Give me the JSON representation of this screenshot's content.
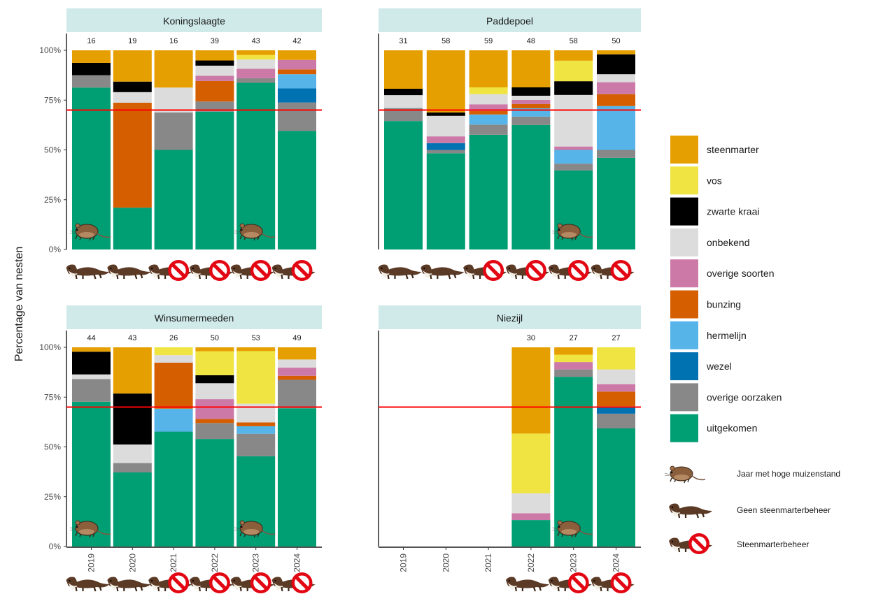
{
  "chart_data": {
    "type": "bar",
    "stacked": true,
    "ylabel": "Percentage van nesten",
    "y_ticks": [
      "0%",
      "25%",
      "50%",
      "75%",
      "100%"
    ],
    "categories": [
      "2019",
      "2020",
      "2021",
      "2022",
      "2023",
      "2024"
    ],
    "reference_line": 70,
    "reference_line_color": "#ff0000",
    "stack_order": [
      "uitgekomen",
      "overige oorzaken",
      "wezel",
      "hermelijn",
      "bunzing",
      "overige soorten",
      "onbekend",
      "zwarte kraai",
      "vos",
      "steenmarter"
    ],
    "legend": [
      {
        "name": "steenmarter",
        "color": "#E69F00"
      },
      {
        "name": "vos",
        "color": "#F0E442"
      },
      {
        "name": "zwarte kraai",
        "color": "#000000"
      },
      {
        "name": "onbekend",
        "color": "#DCDCDC"
      },
      {
        "name": "overige soorten",
        "color": "#CC79A7"
      },
      {
        "name": "bunzing",
        "color": "#D55E00"
      },
      {
        "name": "hermelijn",
        "color": "#56B4E9"
      },
      {
        "name": "wezel",
        "color": "#0072B2"
      },
      {
        "name": "overige oorzaken",
        "color": "#888888"
      },
      {
        "name": "uitgekomen",
        "color": "#009E73"
      }
    ],
    "symbol_legend": [
      {
        "icon": "mouse-icon",
        "label": "Jaar met hoge muizenstand"
      },
      {
        "icon": "marten-icon",
        "label": "Geen steenmarterbeheer"
      },
      {
        "icon": "marten-ban-icon",
        "label": "Steenmarterbeheer"
      }
    ],
    "panels": [
      {
        "name": "Koningslaagte",
        "n": [
          "16",
          "19",
          "16",
          "39",
          "43",
          "42"
        ],
        "stacks": [
          [
            {
              "cat": "uitgekomen",
              "value": 81.3
            },
            {
              "cat": "overige oorzaken",
              "value": 6.2
            },
            {
              "cat": "zwarte kraai",
              "value": 6.2
            },
            {
              "cat": "steenmarter",
              "value": 6.3
            }
          ],
          [
            {
              "cat": "uitgekomen",
              "value": 21.0
            },
            {
              "cat": "bunzing",
              "value": 52.7
            },
            {
              "cat": "onbekend",
              "value": 5.3
            },
            {
              "cat": "zwarte kraai",
              "value": 5.3
            },
            {
              "cat": "steenmarter",
              "value": 15.7
            }
          ],
          [
            {
              "cat": "uitgekomen",
              "value": 50.0
            },
            {
              "cat": "overige oorzaken",
              "value": 18.8
            },
            {
              "cat": "onbekend",
              "value": 12.5
            },
            {
              "cat": "steenmarter",
              "value": 18.7
            }
          ],
          [
            {
              "cat": "uitgekomen",
              "value": 69.2
            },
            {
              "cat": "overige oorzaken",
              "value": 5.1
            },
            {
              "cat": "bunzing",
              "value": 10.3
            },
            {
              "cat": "overige soorten",
              "value": 2.6
            },
            {
              "cat": "onbekend",
              "value": 5.1
            },
            {
              "cat": "zwarte kraai",
              "value": 2.6
            },
            {
              "cat": "steenmarter",
              "value": 5.1
            }
          ],
          [
            {
              "cat": "uitgekomen",
              "value": 83.7
            },
            {
              "cat": "overige oorzaken",
              "value": 2.3
            },
            {
              "cat": "overige soorten",
              "value": 4.7
            },
            {
              "cat": "onbekend",
              "value": 4.7
            },
            {
              "cat": "vos",
              "value": 2.3
            },
            {
              "cat": "steenmarter",
              "value": 2.3
            }
          ],
          [
            {
              "cat": "uitgekomen",
              "value": 59.5
            },
            {
              "cat": "overige oorzaken",
              "value": 14.3
            },
            {
              "cat": "wezel",
              "value": 7.1
            },
            {
              "cat": "hermelijn",
              "value": 7.1
            },
            {
              "cat": "bunzing",
              "value": 2.4
            },
            {
              "cat": "overige soorten",
              "value": 4.8
            },
            {
              "cat": "steenmarter",
              "value": 4.8
            }
          ]
        ],
        "high_mouse": [
          true,
          false,
          false,
          false,
          true,
          false
        ],
        "marten_management": [
          false,
          false,
          true,
          true,
          true,
          true
        ]
      },
      {
        "name": "Paddepoel",
        "n": [
          "31",
          "58",
          "59",
          "48",
          "58",
          "50"
        ],
        "stacks": [
          [
            {
              "cat": "uitgekomen",
              "value": 64.5
            },
            {
              "cat": "overige oorzaken",
              "value": 6.5
            },
            {
              "cat": "onbekend",
              "value": 6.5
            },
            {
              "cat": "zwarte kraai",
              "value": 3.2
            },
            {
              "cat": "steenmarter",
              "value": 19.3
            }
          ],
          [
            {
              "cat": "uitgekomen",
              "value": 48.3
            },
            {
              "cat": "overige oorzaken",
              "value": 1.7
            },
            {
              "cat": "wezel",
              "value": 3.4
            },
            {
              "cat": "overige soorten",
              "value": 3.4
            },
            {
              "cat": "onbekend",
              "value": 10.3
            },
            {
              "cat": "zwarte kraai",
              "value": 1.7
            },
            {
              "cat": "steenmarter",
              "value": 31.2
            }
          ],
          [
            {
              "cat": "uitgekomen",
              "value": 57.6
            },
            {
              "cat": "overige oorzaken",
              "value": 5.1
            },
            {
              "cat": "hermelijn",
              "value": 5.1
            },
            {
              "cat": "bunzing",
              "value": 1.7
            },
            {
              "cat": "overige soorten",
              "value": 3.4
            },
            {
              "cat": "onbekend",
              "value": 5.1
            },
            {
              "cat": "vos",
              "value": 3.4
            },
            {
              "cat": "steenmarter",
              "value": 18.6
            }
          ],
          [
            {
              "cat": "uitgekomen",
              "value": 62.5
            },
            {
              "cat": "overige oorzaken",
              "value": 4.2
            },
            {
              "cat": "hermelijn",
              "value": 4.2
            },
            {
              "cat": "bunzing",
              "value": 2.1
            },
            {
              "cat": "overige soorten",
              "value": 2.1
            },
            {
              "cat": "onbekend",
              "value": 2.1
            },
            {
              "cat": "zwarte kraai",
              "value": 4.2
            },
            {
              "cat": "steenmarter",
              "value": 18.6
            }
          ],
          [
            {
              "cat": "uitgekomen",
              "value": 39.7
            },
            {
              "cat": "overige oorzaken",
              "value": 3.4
            },
            {
              "cat": "hermelijn",
              "value": 6.9
            },
            {
              "cat": "overige soorten",
              "value": 1.7
            },
            {
              "cat": "onbekend",
              "value": 25.9
            },
            {
              "cat": "zwarte kraai",
              "value": 6.9
            },
            {
              "cat": "vos",
              "value": 10.3
            },
            {
              "cat": "steenmarter",
              "value": 5.2
            }
          ],
          [
            {
              "cat": "uitgekomen",
              "value": 46.0
            },
            {
              "cat": "overige oorzaken",
              "value": 4.0
            },
            {
              "cat": "hermelijn",
              "value": 22.0
            },
            {
              "cat": "bunzing",
              "value": 6.0
            },
            {
              "cat": "overige soorten",
              "value": 6.0
            },
            {
              "cat": "onbekend",
              "value": 4.0
            },
            {
              "cat": "zwarte kraai",
              "value": 10.0
            },
            {
              "cat": "steenmarter",
              "value": 2.0
            }
          ]
        ],
        "high_mouse": [
          false,
          false,
          false,
          false,
          true,
          false
        ],
        "marten_management": [
          false,
          false,
          true,
          true,
          true,
          true
        ]
      },
      {
        "name": "Winsumermeeden",
        "n": [
          "44",
          "43",
          "26",
          "50",
          "53",
          "49"
        ],
        "stacks": [
          [
            {
              "cat": "uitgekomen",
              "value": 72.7
            },
            {
              "cat": "overige oorzaken",
              "value": 11.4
            },
            {
              "cat": "onbekend",
              "value": 2.3
            },
            {
              "cat": "zwarte kraai",
              "value": 11.4
            },
            {
              "cat": "steenmarter",
              "value": 2.2
            }
          ],
          [
            {
              "cat": "uitgekomen",
              "value": 37.2
            },
            {
              "cat": "overige oorzaken",
              "value": 4.7
            },
            {
              "cat": "onbekend",
              "value": 9.3
            },
            {
              "cat": "zwarte kraai",
              "value": 25.6
            },
            {
              "cat": "steenmarter",
              "value": 23.2
            }
          ],
          [
            {
              "cat": "uitgekomen",
              "value": 57.7
            },
            {
              "cat": "hermelijn",
              "value": 11.5
            },
            {
              "cat": "bunzing",
              "value": 23.1
            },
            {
              "cat": "onbekend",
              "value": 3.8
            },
            {
              "cat": "vos",
              "value": 3.9
            }
          ],
          [
            {
              "cat": "uitgekomen",
              "value": 54.0
            },
            {
              "cat": "overige oorzaken",
              "value": 8.0
            },
            {
              "cat": "bunzing",
              "value": 2.0
            },
            {
              "cat": "overige soorten",
              "value": 10.0
            },
            {
              "cat": "onbekend",
              "value": 8.0
            },
            {
              "cat": "zwarte kraai",
              "value": 4.0
            },
            {
              "cat": "vos",
              "value": 12.0
            },
            {
              "cat": "steenmarter",
              "value": 2.0
            }
          ],
          [
            {
              "cat": "uitgekomen",
              "value": 45.3
            },
            {
              "cat": "overige oorzaken",
              "value": 11.3
            },
            {
              "cat": "hermelijn",
              "value": 3.8
            },
            {
              "cat": "bunzing",
              "value": 1.9
            },
            {
              "cat": "onbekend",
              "value": 9.4
            },
            {
              "cat": "vos",
              "value": 26.4
            },
            {
              "cat": "steenmarter",
              "value": 1.9
            }
          ],
          [
            {
              "cat": "uitgekomen",
              "value": 69.4
            },
            {
              "cat": "overige oorzaken",
              "value": 14.3
            },
            {
              "cat": "bunzing",
              "value": 2.0
            },
            {
              "cat": "overige soorten",
              "value": 4.1
            },
            {
              "cat": "onbekend",
              "value": 4.1
            },
            {
              "cat": "steenmarter",
              "value": 6.1
            }
          ]
        ],
        "high_mouse": [
          true,
          false,
          false,
          false,
          true,
          false
        ],
        "marten_management": [
          false,
          false,
          true,
          true,
          true,
          true
        ]
      },
      {
        "name": "Niezijl",
        "n": [
          "",
          "",
          "",
          "30",
          "27",
          "27"
        ],
        "stacks": [
          [],
          [],
          [],
          [
            {
              "cat": "uitgekomen",
              "value": 13.3
            },
            {
              "cat": "overige soorten",
              "value": 3.4
            },
            {
              "cat": "onbekend",
              "value": 10.0
            },
            {
              "cat": "vos",
              "value": 30.0
            },
            {
              "cat": "steenmarter",
              "value": 43.3
            }
          ],
          [
            {
              "cat": "uitgekomen",
              "value": 85.2
            },
            {
              "cat": "overige oorzaken",
              "value": 3.7
            },
            {
              "cat": "overige soorten",
              "value": 3.7
            },
            {
              "cat": "vos",
              "value": 3.7
            },
            {
              "cat": "steenmarter",
              "value": 3.7
            }
          ],
          [
            {
              "cat": "uitgekomen",
              "value": 59.3
            },
            {
              "cat": "overige oorzaken",
              "value": 7.4
            },
            {
              "cat": "wezel",
              "value": 3.7
            },
            {
              "cat": "bunzing",
              "value": 7.4
            },
            {
              "cat": "overige soorten",
              "value": 3.7
            },
            {
              "cat": "onbekend",
              "value": 7.4
            },
            {
              "cat": "vos",
              "value": 11.1
            }
          ]
        ],
        "high_mouse": [
          false,
          false,
          false,
          false,
          true,
          false
        ],
        "marten_management": [
          null,
          null,
          null,
          false,
          true,
          true
        ]
      }
    ]
  }
}
